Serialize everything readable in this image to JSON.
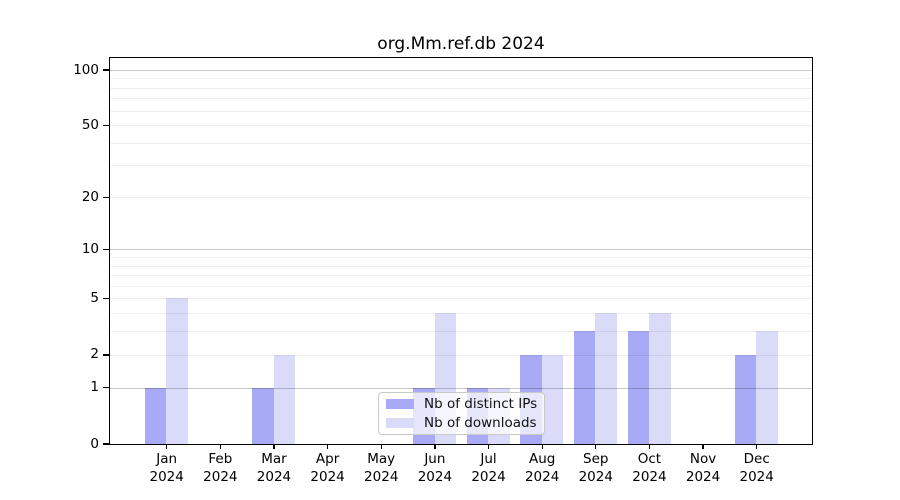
{
  "chart_data": {
    "type": "bar",
    "title": "org.Mm.ref.db 2024",
    "year": "2024",
    "months": [
      "Jan",
      "Feb",
      "Mar",
      "Apr",
      "May",
      "Jun",
      "Jul",
      "Aug",
      "Sep",
      "Oct",
      "Nov",
      "Dec"
    ],
    "categories": [
      "Jan 2024",
      "Feb 2024",
      "Mar 2024",
      "Apr 2024",
      "May 2024",
      "Jun 2024",
      "Jul 2024",
      "Aug 2024",
      "Sep 2024",
      "Oct 2024",
      "Nov 2024",
      "Dec 2024"
    ],
    "series": [
      {
        "name": "Nb of distinct IPs",
        "color": "#a8aaf5",
        "values": [
          1,
          0,
          1,
          0,
          0,
          1,
          1,
          2,
          3,
          3,
          0,
          2
        ]
      },
      {
        "name": "Nb of downloads",
        "color": "#d9dbf9",
        "values": [
          5,
          0,
          2,
          0,
          0,
          4,
          1,
          2,
          4,
          4,
          0,
          3
        ]
      }
    ],
    "y_scale": "log1p",
    "y_ticks": [
      0,
      1,
      2,
      5,
      10,
      20,
      50,
      100
    ],
    "y_minor_gridlines": [
      2,
      3,
      4,
      5,
      6,
      7,
      8,
      9,
      20,
      30,
      40,
      50,
      60,
      70,
      80,
      90
    ],
    "y_major_gridlines": [
      1,
      10,
      100
    ],
    "ylim": [
      0,
      100
    ],
    "grid": "horizontal, log-style minor + major, drawn over bars",
    "legend_position": "inside bottom-center"
  },
  "colors": {
    "background": "#ffffff",
    "axis": "#000000",
    "text": "#000000",
    "bar_distinct_ips": "#a8aaf5",
    "bar_downloads": "#d9dbf9",
    "legend_border": "#c9c9c9"
  }
}
